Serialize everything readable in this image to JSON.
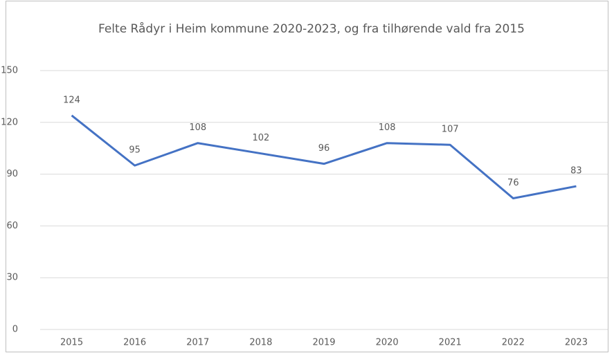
{
  "chart_data": {
    "type": "line",
    "title": "Felte Rådyr i Heim kommune 2020-2023, og fra tilhørende vald fra 2015",
    "categories": [
      "2015",
      "2016",
      "2017",
      "2018",
      "2019",
      "2020",
      "2021",
      "2022",
      "2023"
    ],
    "series": [
      {
        "name": "Felte Rådyr",
        "color": "#4472c4",
        "values": [
          124,
          95,
          108,
          102,
          96,
          108,
          107,
          76,
          83
        ]
      }
    ],
    "ylim": [
      0,
      150
    ],
    "yticks": [
      0,
      30,
      60,
      90,
      120,
      150
    ],
    "grid": true,
    "data_labels": true
  }
}
